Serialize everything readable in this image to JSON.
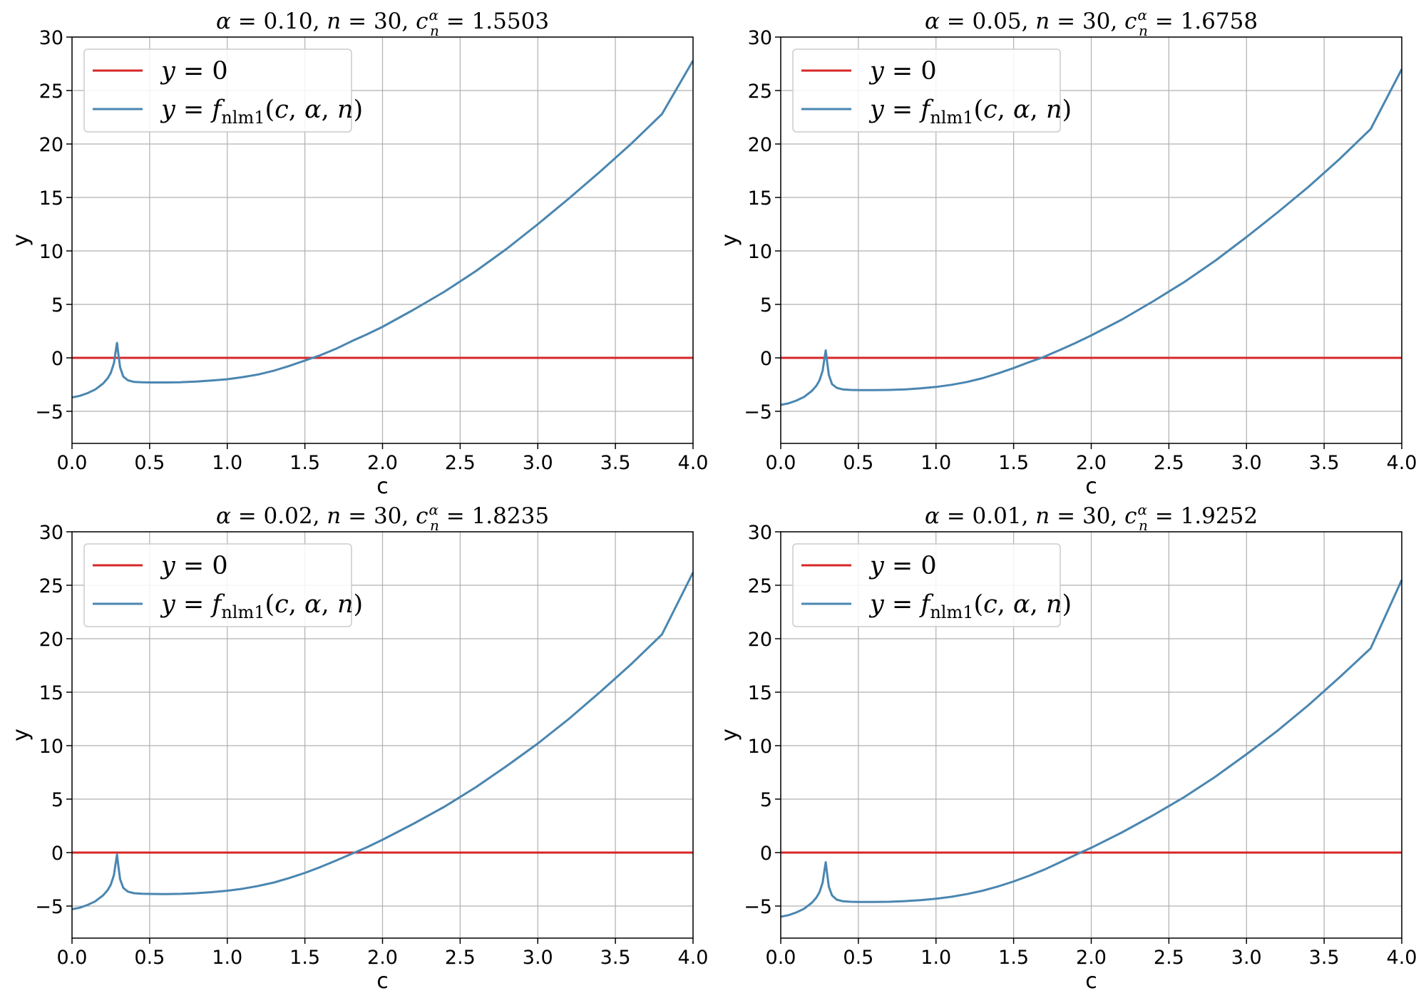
{
  "chart_data": [
    {
      "type": "line",
      "title": {
        "alpha": "0.10",
        "n": "30",
        "c": "1.5503"
      },
      "xlabel": "c",
      "ylabel": "y",
      "xlim": [
        0,
        4
      ],
      "ylim": [
        -8,
        30
      ],
      "xticks": [
        "0.0",
        "0.5",
        "1.0",
        "1.5",
        "2.0",
        "2.5",
        "3.0",
        "3.5",
        "4.0"
      ],
      "yticks": [
        "−5",
        "0",
        "5",
        "10",
        "15",
        "20",
        "25",
        "30"
      ],
      "grid": true,
      "legend_position": "upper-left",
      "series": [
        {
          "name": "y = 0",
          "color": "#d62728",
          "x": [
            0,
            4
          ],
          "y": [
            0,
            0
          ]
        },
        {
          "name": "y = f_nlm1(c, α, n)",
          "color": "#4a86b0",
          "x": [
            0,
            0.05,
            0.1,
            0.15,
            0.2,
            0.23,
            0.25,
            0.27,
            0.28,
            0.29,
            0.3,
            0.31,
            0.33,
            0.36,
            0.4,
            0.45,
            0.5,
            0.6,
            0.7,
            0.8,
            0.9,
            1.0,
            1.1,
            1.2,
            1.3,
            1.4,
            1.5,
            1.55,
            1.6,
            1.7,
            1.8,
            1.9,
            2.0,
            2.2,
            2.4,
            2.6,
            2.8,
            3.0,
            3.2,
            3.4,
            3.6,
            3.8,
            4.0
          ],
          "y": [
            -3.7,
            -3.55,
            -3.3,
            -2.95,
            -2.4,
            -1.9,
            -1.4,
            -0.5,
            0.5,
            1.4,
            0.2,
            -0.9,
            -1.75,
            -2.1,
            -2.25,
            -2.28,
            -2.3,
            -2.3,
            -2.28,
            -2.22,
            -2.12,
            -2.0,
            -1.8,
            -1.55,
            -1.2,
            -0.75,
            -0.25,
            0.0,
            0.25,
            0.85,
            1.55,
            2.2,
            2.9,
            4.5,
            6.2,
            8.1,
            10.2,
            12.5,
            14.9,
            17.4,
            20.0,
            22.8,
            27.8
          ]
        }
      ]
    },
    {
      "type": "line",
      "title": {
        "alpha": "0.05",
        "n": "30",
        "c": "1.6758"
      },
      "xlabel": "c",
      "ylabel": "y",
      "xlim": [
        0,
        4
      ],
      "ylim": [
        -8,
        30
      ],
      "xticks": [
        "0.0",
        "0.5",
        "1.0",
        "1.5",
        "2.0",
        "2.5",
        "3.0",
        "3.5",
        "4.0"
      ],
      "yticks": [
        "−5",
        "0",
        "5",
        "10",
        "15",
        "20",
        "25",
        "30"
      ],
      "grid": true,
      "legend_position": "upper-left",
      "series": [
        {
          "name": "y = 0",
          "color": "#d62728",
          "x": [
            0,
            4
          ],
          "y": [
            0,
            0
          ]
        },
        {
          "name": "y = f_nlm1(c, α, n)",
          "color": "#4a86b0",
          "x": [
            0,
            0.05,
            0.1,
            0.15,
            0.2,
            0.23,
            0.25,
            0.27,
            0.28,
            0.29,
            0.3,
            0.31,
            0.33,
            0.36,
            0.4,
            0.45,
            0.5,
            0.6,
            0.7,
            0.8,
            0.9,
            1.0,
            1.1,
            1.2,
            1.3,
            1.4,
            1.5,
            1.6,
            1.68,
            1.8,
            1.9,
            2.0,
            2.2,
            2.4,
            2.6,
            2.8,
            3.0,
            3.2,
            3.4,
            3.6,
            3.8,
            4.0
          ],
          "y": [
            -4.4,
            -4.25,
            -4.0,
            -3.65,
            -3.1,
            -2.6,
            -2.1,
            -1.2,
            -0.2,
            0.7,
            -0.5,
            -1.6,
            -2.45,
            -2.8,
            -2.95,
            -3.0,
            -3.02,
            -3.02,
            -3.0,
            -2.95,
            -2.85,
            -2.72,
            -2.52,
            -2.25,
            -1.9,
            -1.45,
            -0.95,
            -0.4,
            0.0,
            0.75,
            1.4,
            2.1,
            3.6,
            5.3,
            7.1,
            9.1,
            11.3,
            13.6,
            16.0,
            18.6,
            21.4,
            27.0
          ]
        }
      ]
    },
    {
      "type": "line",
      "title": {
        "alpha": "0.02",
        "n": "30",
        "c": "1.8235"
      },
      "xlabel": "c",
      "ylabel": "y",
      "xlim": [
        0,
        4
      ],
      "ylim": [
        -8,
        30
      ],
      "xticks": [
        "0.0",
        "0.5",
        "1.0",
        "1.5",
        "2.0",
        "2.5",
        "3.0",
        "3.5",
        "4.0"
      ],
      "yticks": [
        "−5",
        "0",
        "5",
        "10",
        "15",
        "20",
        "25",
        "30"
      ],
      "grid": true,
      "legend_position": "upper-left",
      "series": [
        {
          "name": "y = 0",
          "color": "#d62728",
          "x": [
            0,
            4
          ],
          "y": [
            0,
            0
          ]
        },
        {
          "name": "y = f_nlm1(c, α, n)",
          "color": "#4a86b0",
          "x": [
            0,
            0.05,
            0.1,
            0.15,
            0.2,
            0.23,
            0.25,
            0.27,
            0.28,
            0.29,
            0.3,
            0.31,
            0.33,
            0.36,
            0.4,
            0.45,
            0.5,
            0.6,
            0.7,
            0.8,
            0.9,
            1.0,
            1.1,
            1.2,
            1.3,
            1.4,
            1.5,
            1.6,
            1.7,
            1.82,
            1.9,
            2.0,
            2.2,
            2.4,
            2.6,
            2.8,
            3.0,
            3.2,
            3.4,
            3.6,
            3.8,
            4.0
          ],
          "y": [
            -5.3,
            -5.15,
            -4.9,
            -4.55,
            -4.0,
            -3.5,
            -3.0,
            -2.1,
            -1.1,
            -0.2,
            -1.4,
            -2.5,
            -3.3,
            -3.65,
            -3.8,
            -3.85,
            -3.87,
            -3.88,
            -3.86,
            -3.8,
            -3.7,
            -3.57,
            -3.38,
            -3.12,
            -2.8,
            -2.38,
            -1.9,
            -1.35,
            -0.75,
            0.0,
            0.5,
            1.2,
            2.7,
            4.3,
            6.1,
            8.1,
            10.2,
            12.5,
            15.0,
            17.6,
            20.4,
            26.2
          ]
        }
      ]
    },
    {
      "type": "line",
      "title": {
        "alpha": "0.01",
        "n": "30",
        "c": "1.9252"
      },
      "xlabel": "c",
      "ylabel": "y",
      "xlim": [
        0,
        4
      ],
      "ylim": [
        -8,
        30
      ],
      "xticks": [
        "0.0",
        "0.5",
        "1.0",
        "1.5",
        "2.0",
        "2.5",
        "3.0",
        "3.5",
        "4.0"
      ],
      "yticks": [
        "−5",
        "0",
        "5",
        "10",
        "15",
        "20",
        "25",
        "30"
      ],
      "grid": true,
      "legend_position": "upper-left",
      "series": [
        {
          "name": "y = 0",
          "color": "#d62728",
          "x": [
            0,
            4
          ],
          "y": [
            0,
            0
          ]
        },
        {
          "name": "y = f_nlm1(c, α, n)",
          "color": "#4a86b0",
          "x": [
            0,
            0.05,
            0.1,
            0.15,
            0.2,
            0.23,
            0.25,
            0.27,
            0.28,
            0.29,
            0.3,
            0.31,
            0.33,
            0.36,
            0.4,
            0.45,
            0.5,
            0.6,
            0.7,
            0.8,
            0.9,
            1.0,
            1.1,
            1.2,
            1.3,
            1.4,
            1.5,
            1.6,
            1.7,
            1.8,
            1.93,
            2.0,
            2.2,
            2.4,
            2.6,
            2.8,
            3.0,
            3.2,
            3.4,
            3.6,
            3.8,
            4.0
          ],
          "y": [
            -6.0,
            -5.85,
            -5.6,
            -5.25,
            -4.7,
            -4.2,
            -3.7,
            -2.8,
            -1.8,
            -0.9,
            -2.1,
            -3.2,
            -4.0,
            -4.4,
            -4.55,
            -4.6,
            -4.62,
            -4.62,
            -4.6,
            -4.54,
            -4.45,
            -4.32,
            -4.13,
            -3.88,
            -3.57,
            -3.17,
            -2.7,
            -2.17,
            -1.58,
            -0.9,
            0.0,
            0.45,
            1.9,
            3.5,
            5.2,
            7.1,
            9.2,
            11.4,
            13.8,
            16.4,
            19.1,
            25.5
          ]
        }
      ]
    }
  ]
}
